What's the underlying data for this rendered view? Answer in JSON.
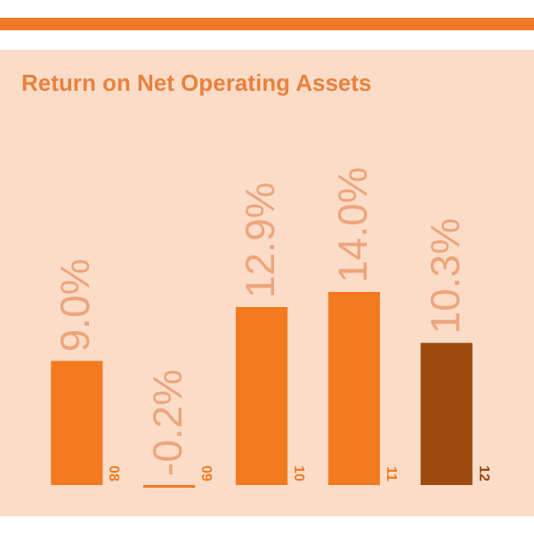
{
  "chart_data": {
    "type": "bar",
    "title": "Return on Net Operating Assets",
    "categories": [
      "08",
      "09",
      "10",
      "11",
      "12"
    ],
    "values": [
      9.0,
      -0.2,
      12.9,
      14.0,
      10.3
    ],
    "colors": [
      "#f47a20",
      "#f47a20",
      "#f47a20",
      "#f47a20",
      "#9c4a0e"
    ],
    "value_labels": [
      "9.0%",
      "-0.2%",
      "12.9%",
      "14.0%",
      "10.3%"
    ]
  }
}
